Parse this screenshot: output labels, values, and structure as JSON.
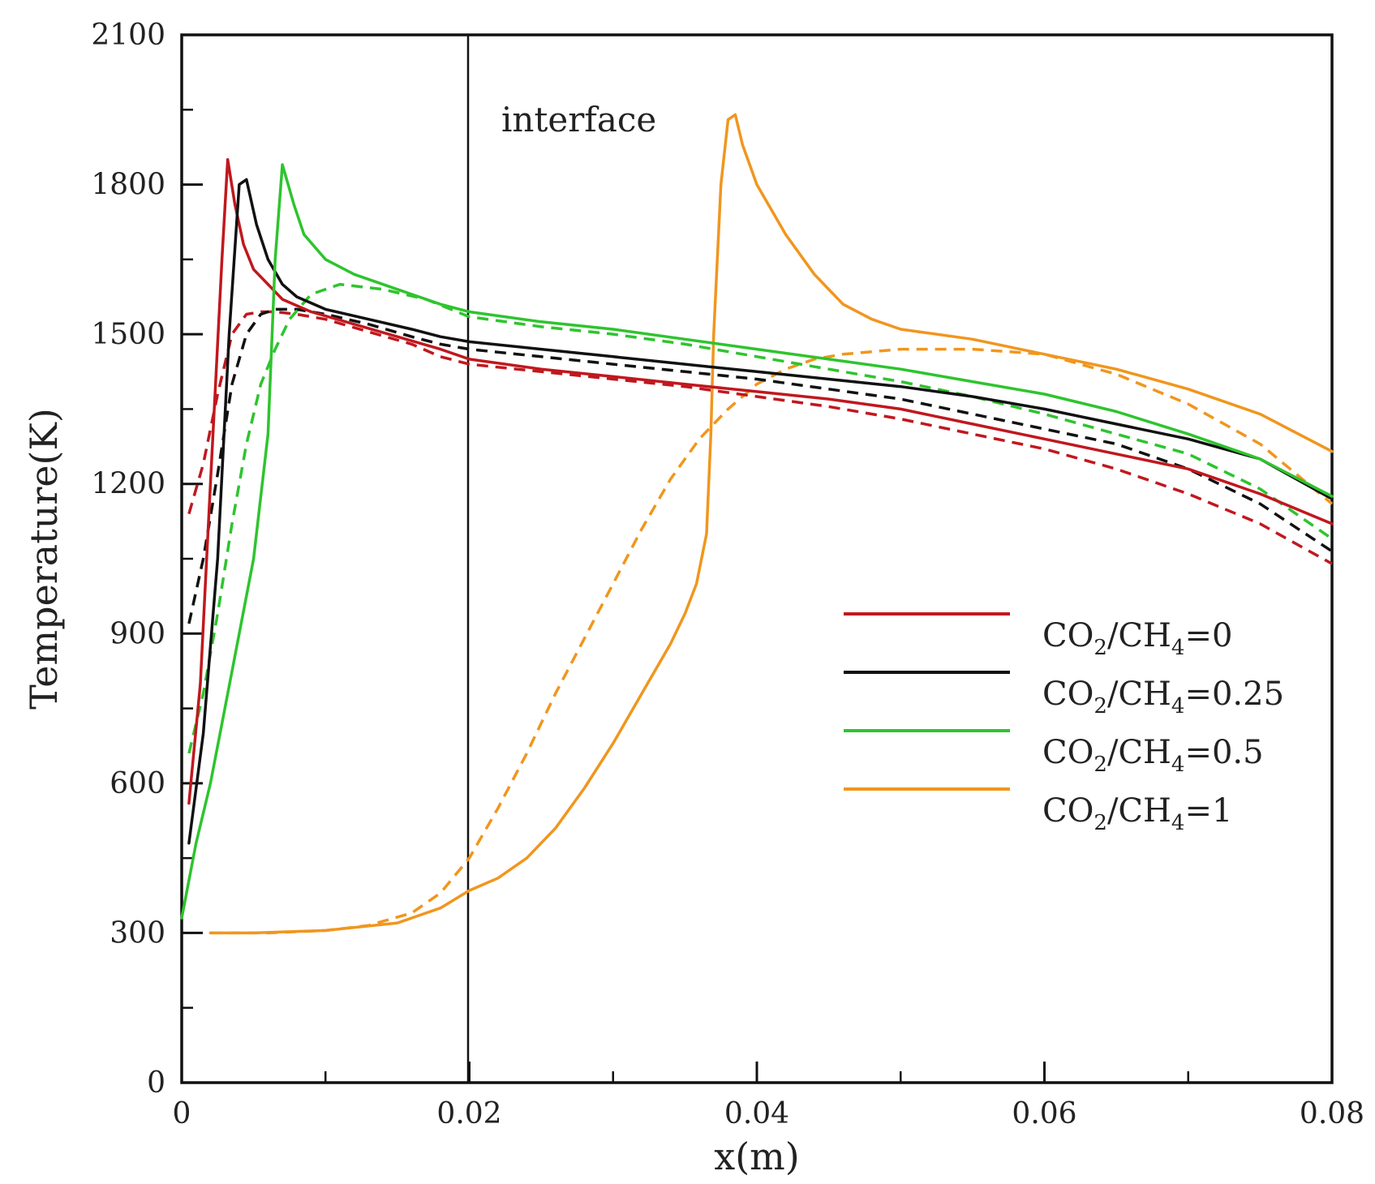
{
  "chart_data": {
    "type": "line",
    "xlabel": "x(m)",
    "ylabel": "Temperature(K)",
    "xlim": [
      0,
      0.08
    ],
    "ylim": [
      0,
      2100
    ],
    "x_ticks": [
      "0",
      "0.02",
      "0.04",
      "0.06",
      "0.08"
    ],
    "y_ticks": [
      "0",
      "300",
      "600",
      "900",
      "1200",
      "1500",
      "1800",
      "2100"
    ],
    "grid": false,
    "legend_position": "center-right",
    "annotation": {
      "text": "interface",
      "x": 0.02
    },
    "legend": [
      {
        "prefix": "CO",
        "sub1": "2",
        "mid": "/CH",
        "sub2": "4",
        "suffix": "=0",
        "color": "#c0181e"
      },
      {
        "prefix": "CO",
        "sub1": "2",
        "mid": "/CH",
        "sub2": "4",
        "suffix": "=0.25",
        "color": "#111111"
      },
      {
        "prefix": "CO",
        "sub1": "2",
        "mid": "/CH",
        "sub2": "4",
        "suffix": "=0.5",
        "color": "#2ec42e"
      },
      {
        "prefix": "CO",
        "sub1": "2",
        "mid": "/CH",
        "sub2": "4",
        "suffix": "=1",
        "color": "#f0961e"
      }
    ],
    "series": [
      {
        "name": "CO2/CH4=0",
        "style": "solid",
        "color": "#c0181e",
        "x": [
          0.0005,
          0.0013,
          0.002,
          0.0028,
          0.0032,
          0.0037,
          0.0043,
          0.005,
          0.006,
          0.007,
          0.009,
          0.012,
          0.015,
          0.018,
          0.02,
          0.025,
          0.03,
          0.035,
          0.04,
          0.045,
          0.05,
          0.055,
          0.06,
          0.065,
          0.07,
          0.075,
          0.08
        ],
        "y": [
          560,
          800,
          1200,
          1650,
          1850,
          1760,
          1680,
          1630,
          1600,
          1570,
          1545,
          1520,
          1495,
          1470,
          1450,
          1430,
          1415,
          1400,
          1385,
          1370,
          1350,
          1320,
          1290,
          1260,
          1230,
          1180,
          1120
        ]
      },
      {
        "name": "CO2/CH4=0.25",
        "style": "solid",
        "color": "#111111",
        "x": [
          0.0005,
          0.0015,
          0.0025,
          0.0033,
          0.004,
          0.0045,
          0.0052,
          0.006,
          0.007,
          0.008,
          0.01,
          0.013,
          0.016,
          0.018,
          0.02,
          0.025,
          0.03,
          0.035,
          0.04,
          0.045,
          0.05,
          0.055,
          0.06,
          0.065,
          0.07,
          0.075,
          0.08
        ],
        "y": [
          480,
          700,
          1050,
          1500,
          1800,
          1810,
          1720,
          1650,
          1600,
          1575,
          1550,
          1530,
          1510,
          1495,
          1485,
          1470,
          1455,
          1440,
          1425,
          1410,
          1395,
          1375,
          1350,
          1320,
          1290,
          1250,
          1170
        ]
      },
      {
        "name": "CO2/CH4=0.5",
        "style": "solid",
        "color": "#2ec42e",
        "x": [
          0,
          0.001,
          0.002,
          0.003,
          0.004,
          0.005,
          0.006,
          0.0065,
          0.007,
          0.0078,
          0.0085,
          0.01,
          0.012,
          0.015,
          0.018,
          0.02,
          0.025,
          0.03,
          0.035,
          0.04,
          0.045,
          0.05,
          0.055,
          0.06,
          0.065,
          0.07,
          0.075,
          0.08
        ],
        "y": [
          330,
          480,
          600,
          750,
          900,
          1050,
          1300,
          1650,
          1840,
          1760,
          1700,
          1650,
          1620,
          1590,
          1560,
          1545,
          1525,
          1510,
          1490,
          1470,
          1450,
          1430,
          1405,
          1380,
          1345,
          1300,
          1250,
          1175
        ]
      },
      {
        "name": "CO2/CH4=1",
        "style": "solid",
        "color": "#f0961e",
        "x": [
          0.002,
          0.005,
          0.01,
          0.015,
          0.018,
          0.02,
          0.022,
          0.024,
          0.026,
          0.028,
          0.03,
          0.032,
          0.034,
          0.035,
          0.0358,
          0.0365,
          0.0368,
          0.037,
          0.0375,
          0.038,
          0.0385,
          0.039,
          0.04,
          0.042,
          0.044,
          0.046,
          0.048,
          0.05,
          0.055,
          0.06,
          0.065,
          0.07,
          0.075,
          0.08
        ],
        "y": [
          300,
          300,
          305,
          320,
          350,
          385,
          410,
          450,
          510,
          590,
          680,
          780,
          880,
          940,
          1000,
          1100,
          1300,
          1500,
          1800,
          1930,
          1940,
          1880,
          1800,
          1700,
          1620,
          1560,
          1530,
          1510,
          1490,
          1460,
          1430,
          1390,
          1340,
          1265
        ]
      },
      {
        "name": "CO2/CH4=0 (dashed)",
        "style": "dashed",
        "color": "#c0181e",
        "x": [
          0.0005,
          0.0015,
          0.0025,
          0.0035,
          0.0045,
          0.0055,
          0.0065,
          0.008,
          0.01,
          0.013,
          0.016,
          0.018,
          0.02,
          0.025,
          0.03,
          0.035,
          0.04,
          0.045,
          0.05,
          0.055,
          0.06,
          0.065,
          0.07,
          0.075,
          0.08
        ],
        "y": [
          1140,
          1240,
          1380,
          1500,
          1540,
          1545,
          1545,
          1540,
          1530,
          1505,
          1480,
          1455,
          1440,
          1425,
          1410,
          1395,
          1375,
          1355,
          1330,
          1300,
          1270,
          1230,
          1180,
          1120,
          1040
        ]
      },
      {
        "name": "CO2/CH4=0.25 (dashed)",
        "style": "dashed",
        "color": "#111111",
        "x": [
          0.0005,
          0.0015,
          0.0025,
          0.0035,
          0.0045,
          0.0055,
          0.0065,
          0.008,
          0.01,
          0.013,
          0.016,
          0.018,
          0.02,
          0.025,
          0.03,
          0.035,
          0.04,
          0.045,
          0.05,
          0.055,
          0.06,
          0.065,
          0.07,
          0.075,
          0.08
        ],
        "y": [
          920,
          1050,
          1220,
          1400,
          1500,
          1540,
          1550,
          1550,
          1540,
          1520,
          1495,
          1480,
          1470,
          1455,
          1440,
          1425,
          1410,
          1390,
          1370,
          1340,
          1310,
          1280,
          1230,
          1160,
          1065
        ]
      },
      {
        "name": "CO2/CH4=0.5 (dashed)",
        "style": "dashed",
        "color": "#2ec42e",
        "x": [
          0.0005,
          0.0015,
          0.0025,
          0.0035,
          0.0045,
          0.0055,
          0.0065,
          0.0075,
          0.009,
          0.011,
          0.014,
          0.017,
          0.02,
          0.025,
          0.03,
          0.035,
          0.04,
          0.045,
          0.05,
          0.055,
          0.06,
          0.065,
          0.07,
          0.075,
          0.08
        ],
        "y": [
          660,
          780,
          940,
          1120,
          1280,
          1400,
          1470,
          1530,
          1580,
          1600,
          1590,
          1570,
          1535,
          1515,
          1500,
          1480,
          1455,
          1430,
          1405,
          1375,
          1340,
          1300,
          1260,
          1190,
          1090
        ]
      },
      {
        "name": "CO2/CH4=1 (dashed)",
        "style": "dashed",
        "color": "#f0961e",
        "x": [
          0.002,
          0.006,
          0.01,
          0.013,
          0.016,
          0.018,
          0.02,
          0.022,
          0.024,
          0.026,
          0.028,
          0.03,
          0.032,
          0.034,
          0.036,
          0.038,
          0.04,
          0.042,
          0.044,
          0.046,
          0.048,
          0.05,
          0.055,
          0.06,
          0.065,
          0.07,
          0.075,
          0.08
        ],
        "y": [
          300,
          300,
          305,
          315,
          340,
          380,
          450,
          550,
          660,
          780,
          890,
          1000,
          1110,
          1210,
          1290,
          1350,
          1400,
          1430,
          1450,
          1460,
          1465,
          1470,
          1470,
          1460,
          1420,
          1360,
          1280,
          1160
        ]
      }
    ]
  }
}
